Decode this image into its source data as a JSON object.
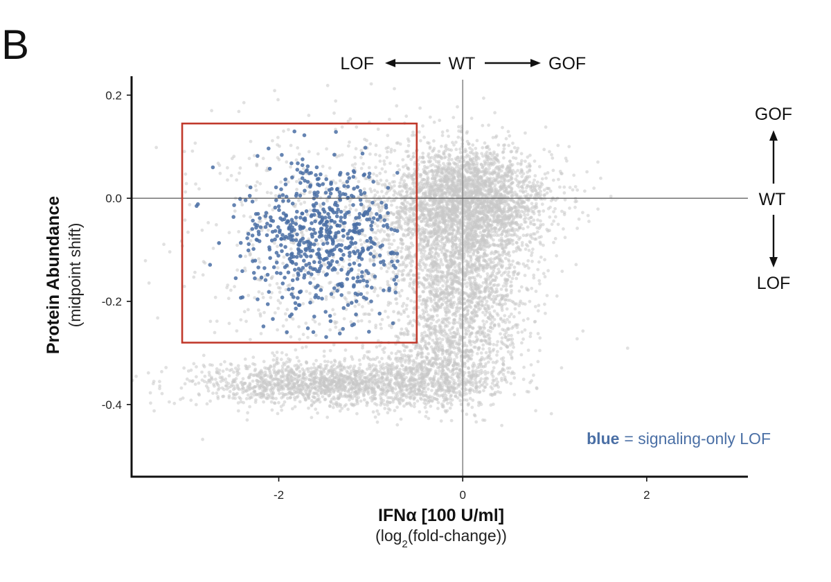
{
  "panel_label": "B",
  "chart_data": {
    "type": "scatter",
    "xlabel": "IFNα [100 U/ml]",
    "xlabel_sub_prefix": "(log",
    "xlabel_sub_subscript": "2",
    "xlabel_sub_suffix": "(fold-change))",
    "ylabel": "Protein Abundance",
    "ylabel_sub": "(midpoint shift)",
    "xlim": [
      -3.6,
      3.1
    ],
    "ylim": [
      -0.54,
      0.23
    ],
    "x_ticks": [
      {
        "value": -2,
        "label": "-2"
      },
      {
        "value": 0,
        "label": "0"
      },
      {
        "value": 2,
        "label": "2"
      }
    ],
    "y_ticks": [
      {
        "value": 0.2,
        "label": "0.2"
      },
      {
        "value": 0.0,
        "label": "0.0"
      },
      {
        "value": -0.2,
        "label": "-0.2"
      },
      {
        "value": -0.4,
        "label": "-0.4"
      }
    ],
    "reference_lines": {
      "x": 0,
      "y": 0
    },
    "selection_box": {
      "x": [
        -3.05,
        -0.5
      ],
      "y": [
        -0.28,
        0.145
      ],
      "color": "#c0392b"
    },
    "series": [
      {
        "role": "background",
        "color": "#c8c8c8",
        "clusters": [
          {
            "center_x": 0.05,
            "center_y": 0.0,
            "spread_x": 0.45,
            "spread_y": 0.05,
            "points": 2600
          },
          {
            "center_x": 0.0,
            "center_y": -0.15,
            "spread_x": 0.35,
            "spread_y": 0.08,
            "points": 1800
          },
          {
            "center_x": -1.4,
            "center_y": -0.36,
            "spread_x": 0.75,
            "spread_y": 0.022,
            "points": 1600
          },
          {
            "center_x": -0.2,
            "center_y": -0.33,
            "spread_x": 0.35,
            "spread_y": 0.04,
            "points": 700
          },
          {
            "center_x": -1.2,
            "center_y": -0.08,
            "spread_x": 0.9,
            "spread_y": 0.12,
            "points": 900
          }
        ]
      },
      {
        "role": "highlight",
        "color": "#4a6fa5",
        "x_range": [
          -3.0,
          -0.7
        ],
        "y_range": [
          -0.27,
          0.13
        ],
        "center_x": -1.55,
        "center_y": -0.08,
        "spread_x": 0.45,
        "spread_y": 0.075,
        "points": 620
      }
    ],
    "top_axis_annotation": {
      "left": "LOF",
      "center": "WT",
      "right": "GOF"
    },
    "right_axis_annotation": {
      "top": "GOF",
      "center": "WT",
      "bottom": "LOF"
    },
    "legend": {
      "keyword": "blue",
      "text": "= signaling-only LOF",
      "color": "#4a6fa5",
      "placement": "bottom-right"
    }
  }
}
